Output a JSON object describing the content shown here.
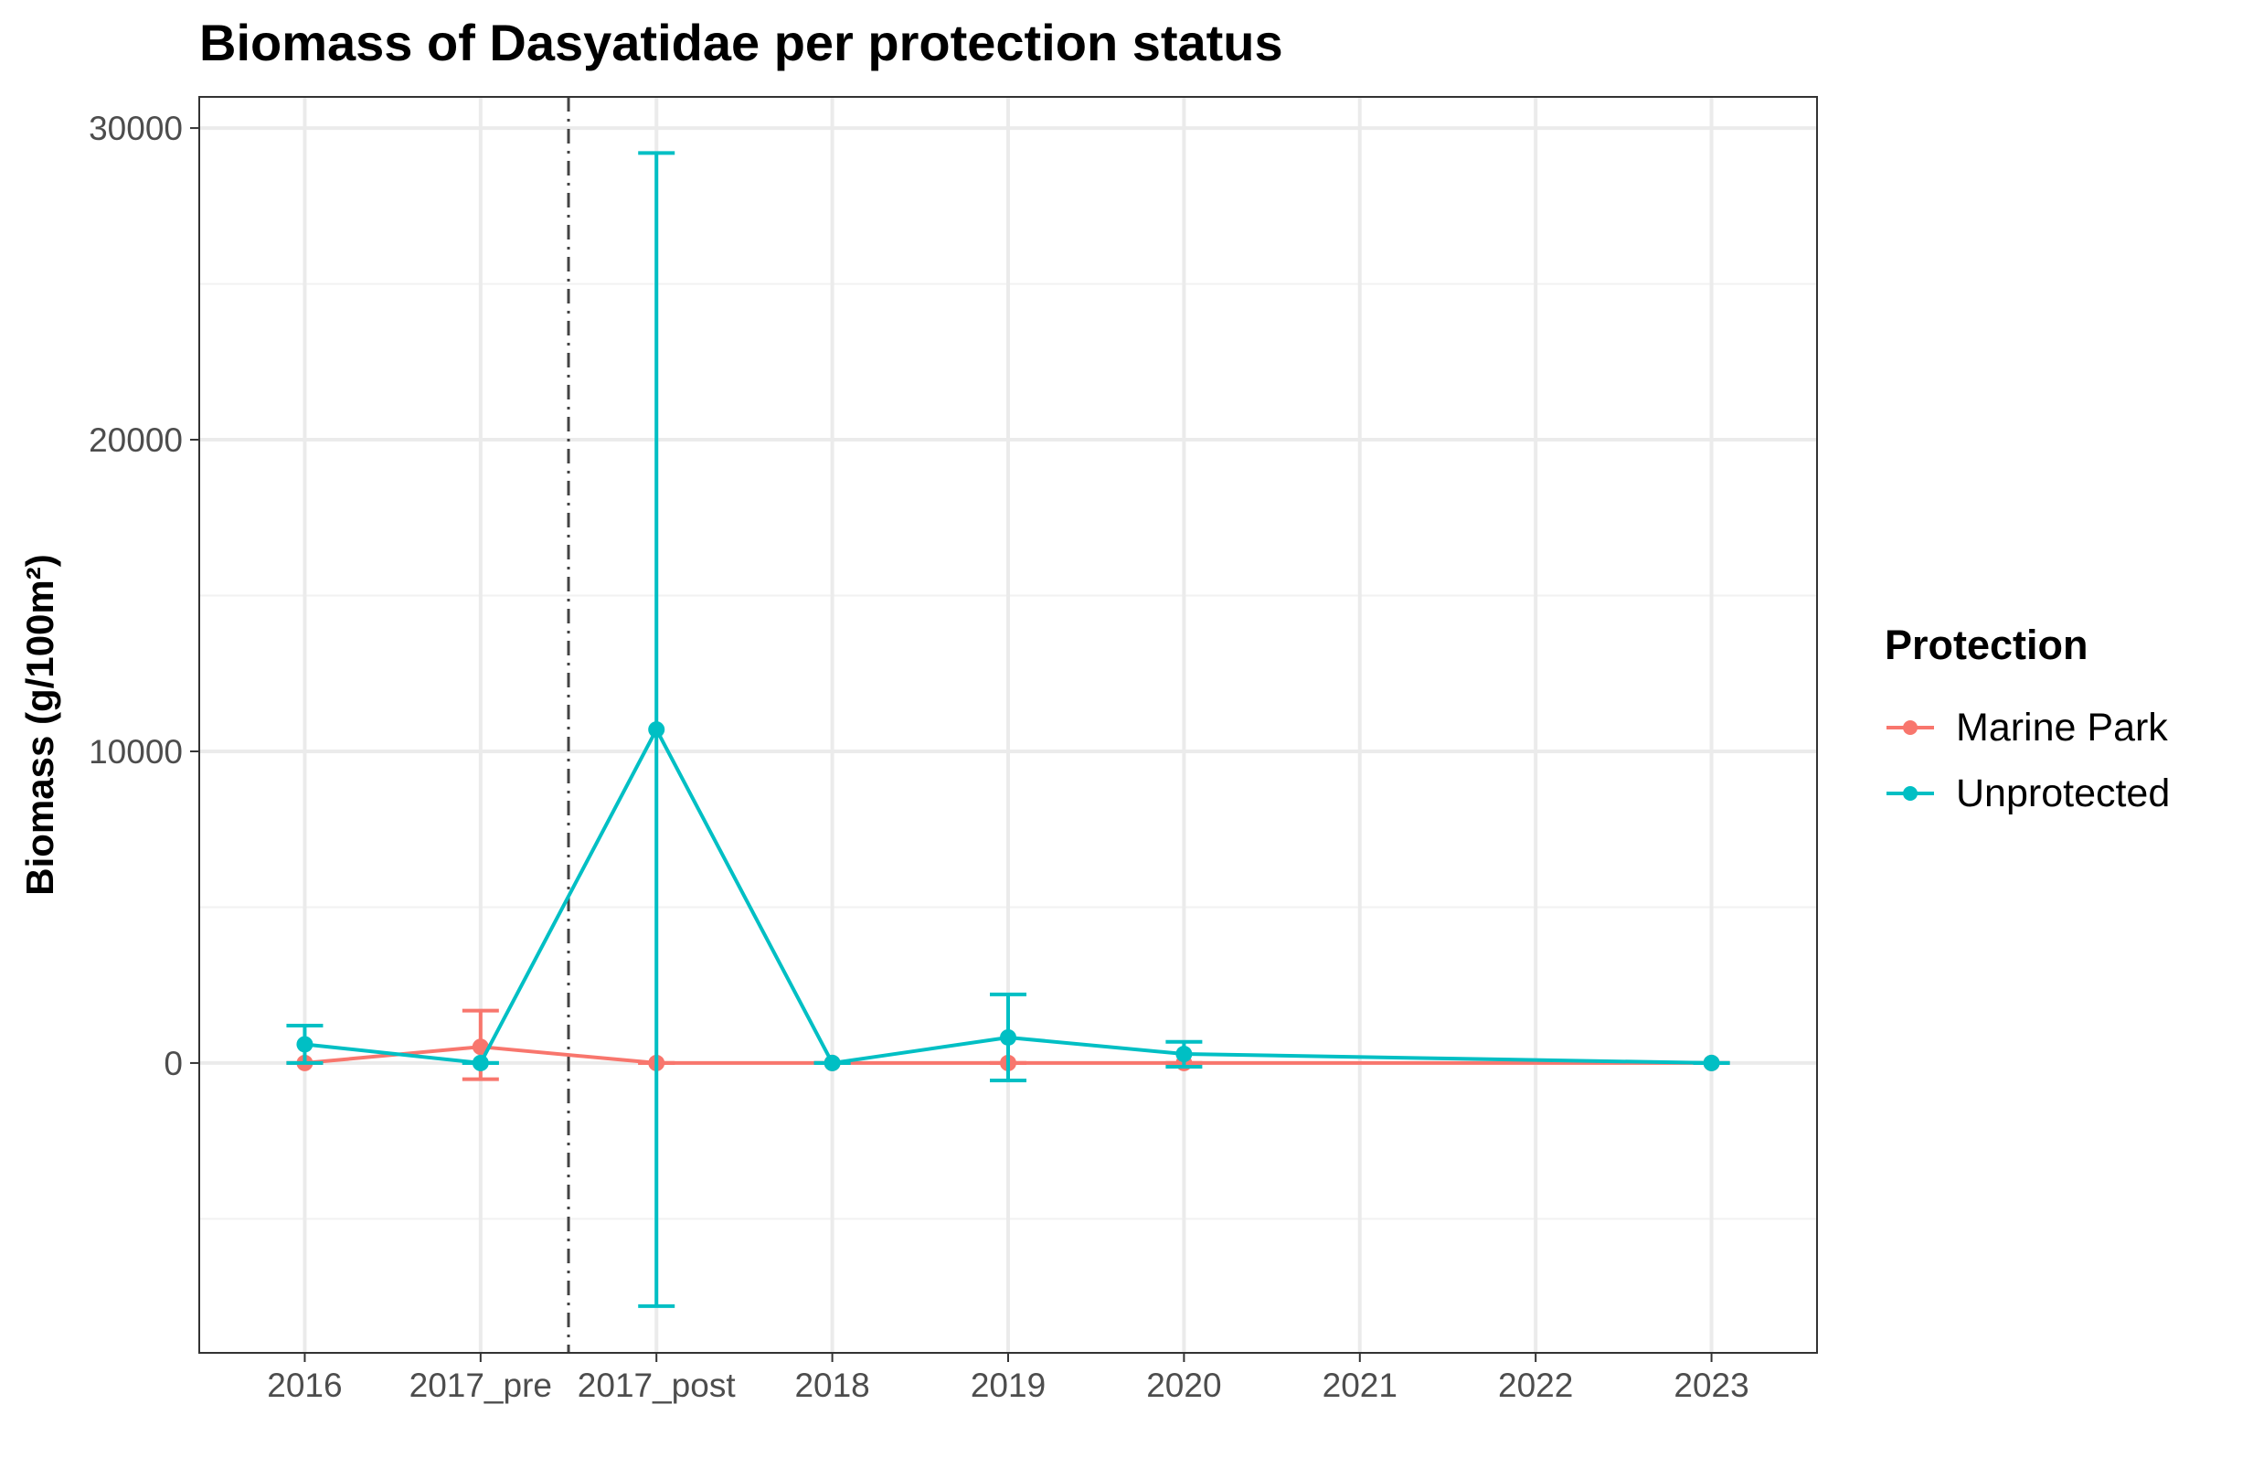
{
  "chart_data": {
    "type": "line",
    "title": "Biomass of Dasyatidae per protection status",
    "xlabel": "",
    "ylabel": "Biomass (g/100m²)",
    "categories": [
      "2016",
      "2017_pre",
      "2017_post",
      "2018",
      "2019",
      "2020",
      "2021",
      "2022",
      "2023"
    ],
    "x_positions": [
      1,
      2,
      3,
      4,
      5,
      6,
      7,
      8,
      9
    ],
    "ylim": [
      -9300,
      31000
    ],
    "yticks": [
      0,
      10000,
      20000,
      30000
    ],
    "grid": true,
    "vline": {
      "x": 2.5,
      "style": "dot-dash"
    },
    "legend": {
      "title": "Protection",
      "position": "right"
    },
    "series": [
      {
        "name": "Marine Park",
        "color": "#F8766D",
        "points": [
          {
            "x": "2016",
            "y": 0,
            "lower": 0,
            "upper": 0
          },
          {
            "x": "2017_pre",
            "y": 520,
            "lower": -520,
            "upper": 1680
          },
          {
            "x": "2017_post",
            "y": 0,
            "lower": 0,
            "upper": 0
          },
          {
            "x": "2018",
            "y": 0,
            "lower": 0,
            "upper": 0
          },
          {
            "x": "2019",
            "y": 0,
            "lower": 0,
            "upper": 0
          },
          {
            "x": "2020",
            "y": 0,
            "lower": 0,
            "upper": 0
          },
          {
            "x": "2023",
            "y": 0,
            "lower": 0,
            "upper": 0
          }
        ]
      },
      {
        "name": "Unprotected",
        "color": "#00BFC4",
        "points": [
          {
            "x": "2016",
            "y": 600,
            "lower": 0,
            "upper": 1200
          },
          {
            "x": "2017_pre",
            "y": 0,
            "lower": 0,
            "upper": 0
          },
          {
            "x": "2017_post",
            "y": 10700,
            "lower": -7800,
            "upper": 29200
          },
          {
            "x": "2018",
            "y": 0,
            "lower": 0,
            "upper": 0
          },
          {
            "x": "2019",
            "y": 820,
            "lower": -560,
            "upper": 2200
          },
          {
            "x": "2020",
            "y": 290,
            "lower": -120,
            "upper": 680
          },
          {
            "x": "2023",
            "y": 0,
            "lower": 0,
            "upper": 0
          }
        ]
      }
    ]
  }
}
